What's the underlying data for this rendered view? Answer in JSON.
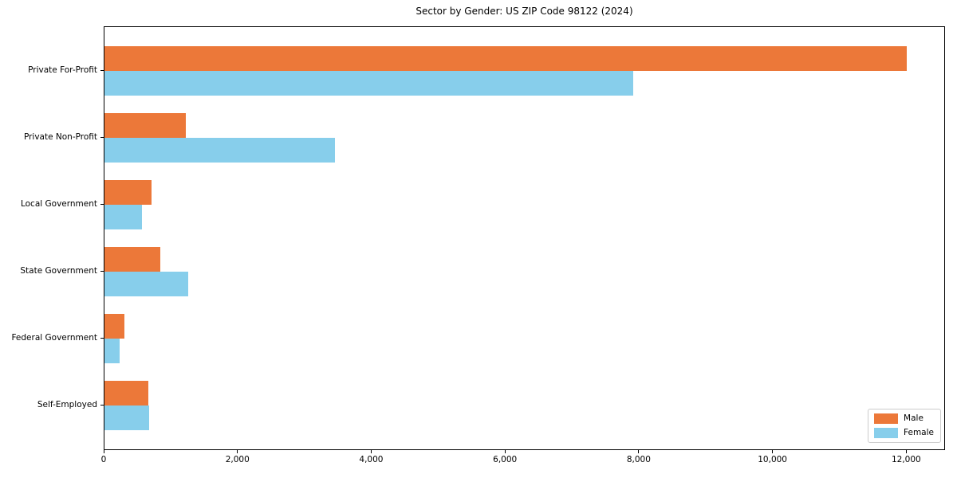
{
  "figure": {
    "title": "Sector by Gender: US ZIP Code 98122 (2024)"
  },
  "colors": {
    "male": "#EC7839",
    "female": "#87CEEB",
    "spine": "#000000",
    "legend_border": "#cccccc",
    "background": "#ffffff"
  },
  "chart_data": {
    "type": "bar",
    "orientation": "horizontal",
    "title": "Sector by Gender: US ZIP Code 98122 (2024)",
    "categories": [
      "Private For-Profit",
      "Private Non-Profit",
      "Local Government",
      "State Government",
      "Federal Government",
      "Self-Employed"
    ],
    "series": [
      {
        "name": "Male",
        "color": "#EC7839",
        "values": [
          11990,
          1220,
          700,
          830,
          300,
          660
        ]
      },
      {
        "name": "Female",
        "color": "#87CEEB",
        "values": [
          7900,
          3450,
          560,
          1250,
          230,
          670
        ]
      }
    ],
    "xlabel": "",
    "ylabel": "",
    "xlim": [
      0,
      12580
    ],
    "xticks": {
      "values": [
        0,
        2000,
        4000,
        6000,
        8000,
        10000,
        12000
      ],
      "labels": [
        "0",
        "2,000",
        "4,000",
        "6,000",
        "8,000",
        "10,000",
        "12,000"
      ]
    },
    "grid": false,
    "legend_position": "lower right"
  }
}
